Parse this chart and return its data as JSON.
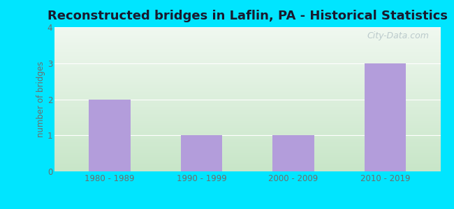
{
  "title": "Reconstructed bridges in Laflin, PA - Historical Statistics",
  "categories": [
    "1980 - 1989",
    "1990 - 1999",
    "2000 - 2009",
    "2010 - 2019"
  ],
  "values": [
    2,
    1,
    1,
    3
  ],
  "bar_color": "#b39ddb",
  "ylabel": "number of bridges",
  "ylim": [
    0,
    4
  ],
  "yticks": [
    0,
    1,
    2,
    3,
    4
  ],
  "title_fontsize": 13,
  "title_fontweight": "bold",
  "title_color": "#1a1a2e",
  "axis_label_color": "#6d6d6d",
  "tick_label_color": "#6d6d6d",
  "background_outer": "#00e5ff",
  "background_top": "#f0f8f0",
  "background_bottom": "#d4edda",
  "grid_color": "#ffffff",
  "watermark_text": "City-Data.com",
  "bar_width": 0.45
}
